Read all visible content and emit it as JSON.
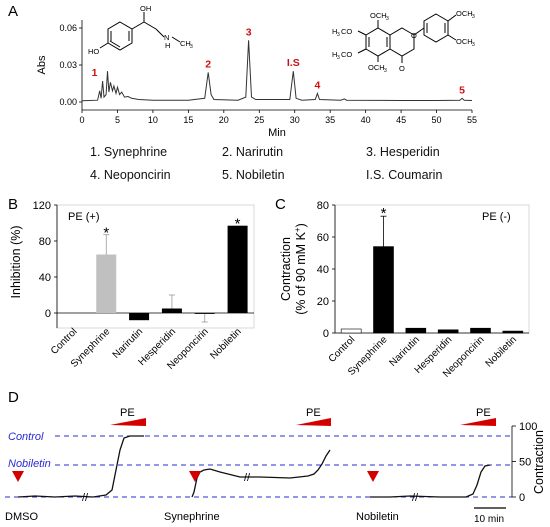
{
  "chart_data": [
    {
      "panel": "A",
      "type": "line",
      "xlabel": "Min",
      "ylabel": "Abs",
      "xlim": [
        0,
        55
      ],
      "ylim": [
        0,
        0.065
      ],
      "x_ticks": [
        0,
        5,
        10,
        15,
        20,
        25,
        30,
        35,
        40,
        45,
        50,
        55
      ],
      "y_ticks": [
        "0.00",
        "0.03",
        "0.06"
      ],
      "peaks": [
        {
          "label": "1",
          "x": 2.9,
          "y": 0.017
        },
        {
          "label": "2",
          "x": 17.8,
          "y": 0.024
        },
        {
          "label": "3",
          "x": 23.5,
          "y": 0.05
        },
        {
          "label": "I.S",
          "x": 29.8,
          "y": 0.025
        },
        {
          "label": "4",
          "x": 33.2,
          "y": 0.007
        },
        {
          "label": "5",
          "x": 53.6,
          "y": 0.003
        }
      ],
      "trace": [
        [
          0,
          0.001
        ],
        [
          2.2,
          0.0015
        ],
        [
          2.5,
          0.009
        ],
        [
          2.7,
          0.003
        ],
        [
          2.9,
          0.017
        ],
        [
          3.1,
          0.004
        ],
        [
          3.4,
          0.006
        ],
        [
          3.6,
          0.025
        ],
        [
          3.8,
          0.008
        ],
        [
          4.0,
          0.016
        ],
        [
          4.3,
          0.009
        ],
        [
          4.5,
          0.013
        ],
        [
          4.8,
          0.007
        ],
        [
          5.0,
          0.012
        ],
        [
          5.3,
          0.006
        ],
        [
          5.6,
          0.008
        ],
        [
          6.0,
          0.004
        ],
        [
          6.5,
          0.0045
        ],
        [
          7,
          0.003
        ],
        [
          8,
          0.002
        ],
        [
          10,
          0.0015
        ],
        [
          15,
          0.0015
        ],
        [
          17.3,
          0.003
        ],
        [
          17.8,
          0.024
        ],
        [
          18.2,
          0.006
        ],
        [
          18.6,
          0.002
        ],
        [
          22,
          0.0015
        ],
        [
          23.1,
          0.004
        ],
        [
          23.5,
          0.05
        ],
        [
          23.9,
          0.004
        ],
        [
          24.5,
          0.002
        ],
        [
          29.3,
          0.002
        ],
        [
          29.8,
          0.025
        ],
        [
          30.2,
          0.003
        ],
        [
          31,
          0.0015
        ],
        [
          32.9,
          0.002
        ],
        [
          33.2,
          0.007
        ],
        [
          33.5,
          0.002
        ],
        [
          36.5,
          0.0015
        ],
        [
          37,
          0.0025
        ],
        [
          37.3,
          0.0015
        ],
        [
          45,
          0.0012
        ],
        [
          50,
          0.0012
        ],
        [
          53.3,
          0.0015
        ],
        [
          53.6,
          0.003
        ],
        [
          53.9,
          0.0015
        ],
        [
          55,
          0.0012
        ]
      ],
      "legend_items": [
        "1. Synephrine",
        "2. Narirutin",
        "3. Hesperidin",
        "4. Neoponcirin",
        "5. Nobiletin",
        "I.S. Coumarin"
      ],
      "structure_labels": {
        "synephrine": [
          "HO",
          "OH",
          "N",
          "H",
          "CH",
          "3"
        ],
        "nobiletin": [
          "OCH",
          "3",
          "OCH",
          "3",
          "OCH",
          "3",
          "H",
          "3",
          "CO",
          "H",
          "3",
          "CO",
          "OCH",
          "3",
          "O",
          "O"
        ]
      }
    },
    {
      "panel": "B",
      "type": "bar",
      "title": "PE (+)",
      "ylabel": "Inhibition (%)",
      "ylim": [
        -20,
        120
      ],
      "y_ticks": [
        0,
        40,
        80,
        120
      ],
      "categories": [
        "Control",
        "Synephrine",
        "Narirutin",
        "Hesperidin",
        "Neoponcirin",
        "Nobiletin"
      ],
      "values": [
        0,
        65,
        -8,
        5,
        -1,
        97
      ],
      "errors": [
        0,
        22,
        0,
        15,
        9,
        0
      ],
      "colors": [
        "#ffffff",
        "#c0c0c0",
        "#000000",
        "#000000",
        "#000000",
        "#000000"
      ],
      "significance": [
        "",
        "*",
        "",
        "",
        "",
        "*"
      ]
    },
    {
      "panel": "C",
      "type": "bar",
      "title": "PE (-)",
      "ylabel_line1": "Contraction",
      "ylabel_line2": "(% of 90 mM K",
      "ylabel_sup": "+",
      "ylabel_end": ")",
      "ylim": [
        0,
        80
      ],
      "y_ticks": [
        0,
        20,
        40,
        60,
        80
      ],
      "categories": [
        "Control",
        "Synephrine",
        "Narirutin",
        "Hesperidin",
        "Neoponcirin",
        "Nobiletin"
      ],
      "values": [
        2.5,
        54,
        3,
        2,
        3,
        1.2
      ],
      "errors": [
        0.5,
        19,
        0.5,
        0.3,
        0.5,
        0.3
      ],
      "significance": [
        "",
        "*",
        "",
        "",
        "",
        ""
      ]
    },
    {
      "panel": "D",
      "type": "line",
      "right_axis_label": "Contraction",
      "right_ticks": [
        0,
        50,
        100
      ],
      "reference_lines": [
        {
          "label": "Control",
          "value": 85
        },
        {
          "label": "Nobiletin",
          "value": 47
        }
      ],
      "stimulus_label": "PE",
      "conditions": [
        "DMSO",
        "Synephrine",
        "Nobiletin"
      ],
      "scale_bar": "10 min"
    }
  ]
}
